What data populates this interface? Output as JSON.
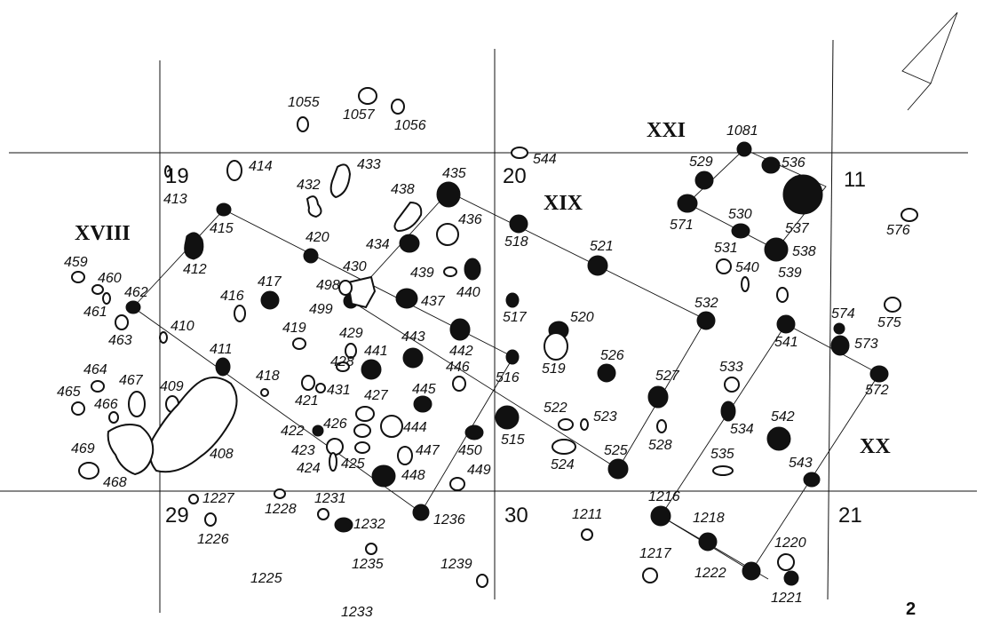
{
  "figure_number": "2",
  "grid_squares": {
    "s19": "19",
    "s20": "20",
    "s11": "11",
    "s29": "29",
    "s30": "30",
    "s21": "21"
  },
  "structures": {
    "xviii": "XVIII",
    "xix": "XIX",
    "xx": "XX",
    "xxi": "XXI"
  },
  "post_labels": {
    "l1055": "1055",
    "l1057": "1057",
    "l1056": "1056",
    "l414": "414",
    "l433": "433",
    "l413": "413",
    "l432": "432",
    "l438": "438",
    "l435": "435",
    "l544": "544",
    "l1081": "1081",
    "l529": "529",
    "l536": "536",
    "l415": "415",
    "l436": "436",
    "l518": "518",
    "l530": "530",
    "l571": "571",
    "l537": "537",
    "l576": "576",
    "l420": "420",
    "l434": "434",
    "l521": "521",
    "l531": "531",
    "l538": "538",
    "l412": "412",
    "l459": "459",
    "l430": "430",
    "l439": "439",
    "l540": "540",
    "l539": "539",
    "l460": "460",
    "l462": "462",
    "l416": "416",
    "l417": "417",
    "l498": "498",
    "l440": "440",
    "l437": "437",
    "l499": "499",
    "l517": "517",
    "l574": "574",
    "l575": "575",
    "l461": "461",
    "l532": "532",
    "l520": "520",
    "l410": "410",
    "l419": "419",
    "l463": "463",
    "l429": "429",
    "l443": "443",
    "l573": "573",
    "l541": "541",
    "l442": "442",
    "l519": "519",
    "l526": "526",
    "l411": "411",
    "l428": "428",
    "l441": "441",
    "l446": "446",
    "l533": "533",
    "l464": "464",
    "l467": "467",
    "l409": "409",
    "l516": "516",
    "l418": "418",
    "l431": "431",
    "l465": "465",
    "l421": "421",
    "l427": "427",
    "l527": "527",
    "l445": "445",
    "l572": "572",
    "l466": "466",
    "l522": "522",
    "l523": "523",
    "l542": "542",
    "l444": "444",
    "l534": "534",
    "l422": "422",
    "l426": "426",
    "l528": "528",
    "l423": "423",
    "l515": "515",
    "l450": "450",
    "l447": "447",
    "l408": "408",
    "l469": "469",
    "l425": "425",
    "l424": "424",
    "l525": "525",
    "l535": "535",
    "l543": "543",
    "l524": "524",
    "l448": "448",
    "l449": "449",
    "l468": "468",
    "l1227": "1227",
    "l1216": "1216",
    "l1231": "1231",
    "l1228": "1228",
    "l1236": "1236",
    "l1232": "1232",
    "l1211": "1211",
    "l1226": "1226",
    "l1218": "1218",
    "l1220": "1220",
    "l1217": "1217",
    "l1235": "1235",
    "l1239": "1239",
    "l1222": "1222",
    "l1225": "1225",
    "l1221": "1221",
    "l1233": "1233"
  }
}
